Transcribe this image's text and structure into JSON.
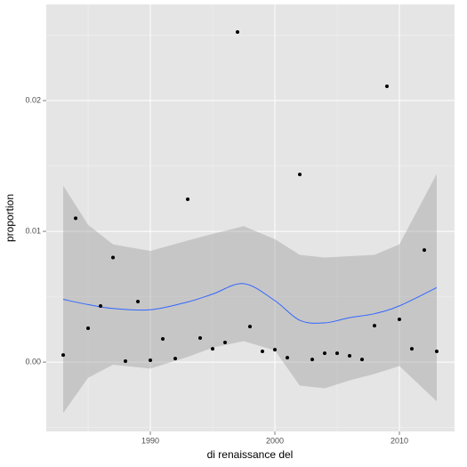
{
  "chart_data": {
    "type": "scatter",
    "x_label": "di renaissance del",
    "y_label": "proportion",
    "x": [
      1983,
      1984,
      1985,
      1986,
      1987,
      1988,
      1989,
      1990,
      1991,
      1992,
      1993,
      1994,
      1995,
      1996,
      1997,
      1998,
      1999,
      2000,
      2001,
      2002,
      2003,
      2004,
      2005,
      2006,
      2007,
      2008,
      2009,
      2010,
      2011,
      2012,
      2013
    ],
    "values": [
      0.00054,
      0.011,
      0.00259,
      0.00429,
      0.008,
      7e-05,
      0.00463,
      0.00014,
      0.00177,
      0.00027,
      0.01245,
      0.00184,
      0.00102,
      0.0015,
      0.02524,
      0.00272,
      0.00082,
      0.00095,
      0.00034,
      0.01435,
      0.0002,
      0.00068,
      0.00068,
      0.00048,
      0.0002,
      0.00279,
      0.02109,
      0.00327,
      0.00102,
      0.00857,
      0.00082
    ],
    "color": "#000000",
    "smooth": {
      "color": "#3366ff",
      "band_color": "#999999",
      "x": [
        1983,
        1985,
        1987,
        1990,
        1993,
        1995,
        1997.5,
        2000,
        2002,
        2004,
        2006,
        2008,
        2010,
        2013
      ],
      "fit": [
        0.0048,
        0.0044,
        0.0041,
        0.004,
        0.0046,
        0.0052,
        0.006,
        0.0047,
        0.0032,
        0.003,
        0.0034,
        0.0037,
        0.0043,
        0.0057
      ],
      "upper": [
        0.0135,
        0.0105,
        0.009,
        0.0085,
        0.0093,
        0.0098,
        0.0104,
        0.0094,
        0.0082,
        0.008,
        0.0081,
        0.0082,
        0.009,
        0.0144
      ],
      "lower": [
        -0.0039,
        -0.0012,
        -0.0002,
        -0.0005,
        0.0004,
        0.0011,
        0.0016,
        0.0009,
        -0.0018,
        -0.002,
        -0.0014,
        -0.0009,
        -0.0003,
        -0.003
      ]
    },
    "xlim": [
      1981.64,
      2014.43
    ],
    "ylim": [
      -0.0053,
      0.02735
    ],
    "xticks": [
      1990,
      2000,
      2010
    ],
    "yticks": [
      {
        "value": 0,
        "label": "0.00"
      },
      {
        "value": 0.01,
        "label": "0.01"
      },
      {
        "value": 0.02,
        "label": "0.02"
      }
    ],
    "grid": true
  }
}
